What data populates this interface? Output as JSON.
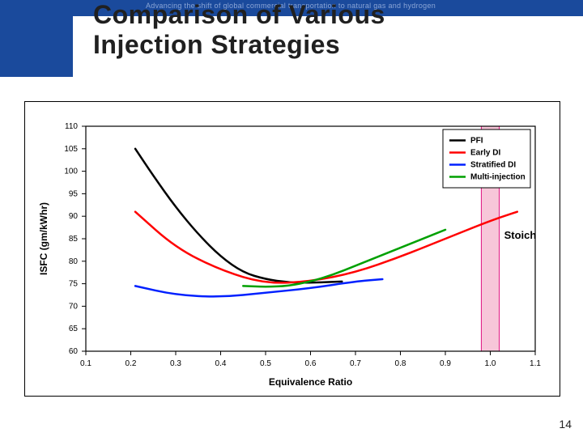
{
  "banner": {
    "tagline": "Advancing the shift of global commercial transportation to natural gas and hydrogen"
  },
  "title_line1": "Comparison of Various",
  "title_line2": "Injection Strategies",
  "page_number": "14",
  "chart": {
    "type": "line",
    "xlabel": "Equivalence Ratio",
    "ylabel": "ISFC (gm/kWhr)",
    "label_fontsize": 12,
    "label_fontweight": "bold",
    "tick_fontsize": 10,
    "background_color": "#ffffff",
    "axis_color": "#000000",
    "grid_on": false,
    "xlim": [
      0.1,
      1.1
    ],
    "ylim": [
      60,
      110
    ],
    "xtick_step": 0.1,
    "ytick_step": 5,
    "xticks": [
      "0.1",
      "0.2",
      "0.3",
      "0.4",
      "0.5",
      "0.6",
      "0.7",
      "0.8",
      "0.9",
      "1.0",
      "1.1"
    ],
    "yticks": [
      "60",
      "65",
      "70",
      "75",
      "80",
      "85",
      "90",
      "95",
      "100",
      "105",
      "110"
    ],
    "line_width": 2.5,
    "stoich_label": "Stoich",
    "stoich_band": {
      "x_from": 0.98,
      "x_to": 1.02,
      "fill": "#f7c6d9",
      "stroke": "#e01080"
    },
    "legend": {
      "position": "upper_right",
      "box_stroke": "#000000",
      "box_fill": "#ffffff",
      "fontsize": 10,
      "fontweight": "bold"
    },
    "series": [
      {
        "name": "PFI",
        "color": "#000000",
        "x": [
          0.21,
          0.25,
          0.3,
          0.35,
          0.4,
          0.45,
          0.5,
          0.55,
          0.6,
          0.67
        ],
        "y": [
          105.0,
          99.0,
          92.0,
          86.0,
          81.0,
          77.5,
          76.0,
          75.3,
          75.2,
          75.5
        ]
      },
      {
        "name": "Early DI",
        "color": "#ff0000",
        "x": [
          0.21,
          0.3,
          0.4,
          0.5,
          0.6,
          0.7,
          0.8,
          0.9,
          1.0,
          1.06
        ],
        "y": [
          91.0,
          83.0,
          78.0,
          75.0,
          75.5,
          77.5,
          81.0,
          85.0,
          89.0,
          91.0
        ]
      },
      {
        "name": "Stratified DI",
        "color": "#0020ff",
        "x": [
          0.21,
          0.3,
          0.4,
          0.5,
          0.6,
          0.7,
          0.76
        ],
        "y": [
          74.5,
          72.5,
          72.0,
          73.0,
          74.0,
          75.5,
          76.0
        ]
      },
      {
        "name": "Multi-injection",
        "color": "#00a000",
        "x": [
          0.45,
          0.5,
          0.55,
          0.6,
          0.65,
          0.7,
          0.75,
          0.8,
          0.85,
          0.9
        ],
        "y": [
          74.5,
          74.3,
          74.5,
          75.5,
          77.0,
          79.0,
          81.0,
          83.0,
          85.0,
          87.0
        ]
      }
    ]
  }
}
